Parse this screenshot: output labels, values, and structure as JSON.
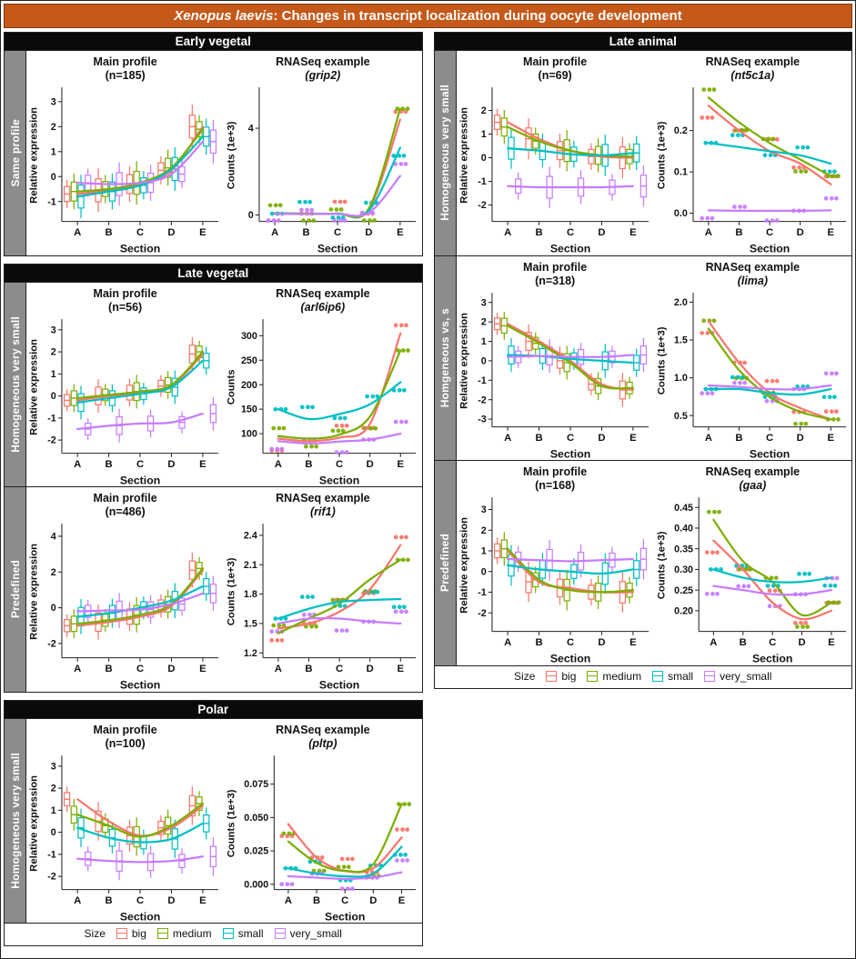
{
  "title": {
    "species": "Xenopus laevis",
    "rest": ": Changes in transcript localization during oocyte development"
  },
  "colors": {
    "big": "#F8766D",
    "medium": "#7CAE00",
    "small": "#00BFC4",
    "very_small": "#C77CFF"
  },
  "legend": {
    "label": "Size",
    "items": [
      "big",
      "medium",
      "small",
      "very_small"
    ]
  },
  "panels": {
    "left": [
      {
        "header": "Early vegetal",
        "rows": [
          {
            "strip": "Same profile"
          }
        ]
      },
      {
        "header": "Late vegetal",
        "rows": [
          {
            "strip": "Homogeneous very small"
          },
          {
            "strip": "Predefined"
          }
        ]
      },
      {
        "header": "Polar",
        "rows": [
          {
            "strip": "Homogeneous very small"
          }
        ]
      }
    ],
    "right": [
      {
        "header": "Late animal",
        "rows": [
          {
            "strip": "Homogeneous very small"
          },
          {
            "strip": "Homgeneous vs, s"
          },
          {
            "strip": "Predefined"
          }
        ]
      }
    ]
  },
  "chart_data": [
    {
      "type": "bar",
      "kind": "box",
      "title1": "Main profile",
      "title2": "(n=185)",
      "ylab": "Relative expression",
      "xlab": "Section",
      "categories": [
        "A",
        "B",
        "C",
        "D",
        "E"
      ],
      "ylim": [
        -1.8,
        3.5
      ],
      "yticks": [
        "-1",
        "0",
        "1",
        "2",
        "3"
      ],
      "spread": 0.8,
      "series": {
        "big": [
          -0.7,
          -0.55,
          -0.3,
          0.25,
          2.0
        ],
        "medium": [
          -0.6,
          -0.5,
          -0.25,
          0.35,
          1.9
        ],
        "small": [
          -0.8,
          -0.6,
          -0.35,
          0.3,
          1.6
        ],
        "very_small": [
          -0.25,
          -0.3,
          -0.25,
          0.1,
          1.4
        ]
      }
    },
    {
      "type": "scatter",
      "kind": "points",
      "title1": "RNASeq example",
      "title2": "(grip2)",
      "italic2": true,
      "ylab": "Counts (1e+3)",
      "xlab": "Section",
      "categories": [
        "A",
        "B",
        "C",
        "D",
        "E"
      ],
      "ylim": [
        -0.3,
        5.8
      ],
      "yticks": [
        "0",
        "4"
      ],
      "series": {
        "big": [
          0.07,
          0.06,
          0.06,
          0.25,
          4.4
        ],
        "medium": [
          0.08,
          0.07,
          0.07,
          0.3,
          4.9
        ],
        "small": [
          0.06,
          0.05,
          0.06,
          0.2,
          3.1
        ],
        "very_small": [
          0.05,
          0.05,
          0.05,
          0.1,
          1.8
        ]
      }
    },
    {
      "type": "bar",
      "kind": "box",
      "title1": "Main profile",
      "title2": "(n=56)",
      "ylab": "Relative expression",
      "xlab": "Section",
      "categories": [
        "A",
        "B",
        "C",
        "D",
        "E"
      ],
      "ylim": [
        -2.6,
        3.4
      ],
      "yticks": [
        "-2",
        "-1",
        "0",
        "1",
        "2",
        "3"
      ],
      "spread": 0.7,
      "series": {
        "big": [
          -0.2,
          0.0,
          0.15,
          0.45,
          1.9
        ],
        "medium": [
          -0.1,
          0.05,
          0.2,
          0.5,
          2.0
        ],
        "small": [
          -0.3,
          -0.1,
          0.1,
          0.4,
          1.6
        ],
        "very_small": [
          -1.5,
          -1.35,
          -1.25,
          -1.2,
          -0.8
        ]
      }
    },
    {
      "type": "scatter",
      "kind": "points",
      "title1": "RNASeq example",
      "title2": "(arl6ip6)",
      "italic2": true,
      "ylab": "Counts",
      "xlab": "Section",
      "categories": [
        "A",
        "B",
        "C",
        "D",
        "E"
      ],
      "ylim": [
        60,
        330
      ],
      "yticks": [
        "100",
        "150",
        "200",
        "250",
        "300"
      ],
      "series": {
        "big": [
          90,
          85,
          92,
          120,
          305
        ],
        "medium": [
          95,
          90,
          98,
          135,
          270
        ],
        "small": [
          150,
          130,
          140,
          160,
          205
        ],
        "very_small": [
          85,
          80,
          84,
          88,
          100
        ]
      }
    },
    {
      "type": "bar",
      "kind": "box",
      "title1": "Main profile",
      "title2": "(n=486)",
      "ylab": "Relative expression",
      "xlab": "Section",
      "categories": [
        "A",
        "B",
        "C",
        "D",
        "E"
      ],
      "ylim": [
        -2.8,
        4.6
      ],
      "yticks": [
        "-2",
        "0",
        "2",
        "4"
      ],
      "spread": 0.9,
      "series": {
        "big": [
          -1.0,
          -0.8,
          -0.5,
          0.1,
          2.1
        ],
        "medium": [
          -0.9,
          -0.7,
          -0.4,
          0.2,
          2.2
        ],
        "small": [
          -0.5,
          -0.3,
          0.0,
          0.4,
          1.2
        ],
        "very_small": [
          -0.2,
          -0.15,
          -0.1,
          0.2,
          0.8
        ]
      }
    },
    {
      "type": "scatter",
      "kind": "points",
      "title1": "RNASeq example",
      "title2": "(rif1)",
      "italic2": true,
      "ylab": "Counts (1e+3)",
      "xlab": "Section",
      "categories": [
        "A",
        "B",
        "C",
        "D",
        "E"
      ],
      "ylim": [
        1.15,
        2.5
      ],
      "yticks": [
        "1.2",
        "1.5",
        "1.8",
        "2.1",
        "2.4"
      ],
      "series": {
        "big": [
          1.45,
          1.5,
          1.62,
          1.85,
          2.3
        ],
        "medium": [
          1.4,
          1.55,
          1.7,
          1.95,
          2.15
        ],
        "small": [
          1.55,
          1.65,
          1.72,
          1.74,
          1.75
        ],
        "very_small": [
          1.5,
          1.55,
          1.55,
          1.52,
          1.5
        ]
      }
    },
    {
      "type": "bar",
      "kind": "box",
      "title1": "Main profile",
      "title2": "(n=100)",
      "ylab": "Relative expression",
      "xlab": "Section",
      "categories": [
        "A",
        "B",
        "C",
        "D",
        "E"
      ],
      "ylim": [
        -2.6,
        3.4
      ],
      "yticks": [
        "-2",
        "-1",
        "0",
        "1",
        "2",
        "3"
      ],
      "spread": 0.8,
      "series": {
        "big": [
          1.5,
          0.5,
          -0.15,
          0.2,
          1.2
        ],
        "medium": [
          0.8,
          0.3,
          -0.2,
          0.3,
          1.3
        ],
        "small": [
          0.2,
          -0.25,
          -0.45,
          -0.3,
          0.4
        ],
        "very_small": [
          -1.2,
          -1.3,
          -1.35,
          -1.3,
          -1.1
        ]
      }
    },
    {
      "type": "scatter",
      "kind": "points",
      "title1": "RNASeq example",
      "title2": "(pltp)",
      "italic2": true,
      "ylab": "Counts (1e+3)",
      "xlab": "Section",
      "categories": [
        "A",
        "B",
        "C",
        "D",
        "E"
      ],
      "ylim": [
        -0.004,
        0.095
      ],
      "yticks": [
        "0.000",
        "0.025",
        "0.050",
        "0.075"
      ],
      "series": {
        "big": [
          0.045,
          0.02,
          0.01,
          0.012,
          0.035
        ],
        "medium": [
          0.032,
          0.016,
          0.01,
          0.015,
          0.06
        ],
        "small": [
          0.012,
          0.008,
          0.006,
          0.008,
          0.028
        ],
        "very_small": [
          0.006,
          0.005,
          0.004,
          0.005,
          0.009
        ]
      }
    },
    {
      "type": "bar",
      "kind": "box",
      "title1": "Main profile",
      "title2": "(n=69)",
      "ylab": "Relative expression",
      "xlab": "Section",
      "categories": [
        "A",
        "B",
        "C",
        "D",
        "E"
      ],
      "ylim": [
        -2.7,
        2.9
      ],
      "yticks": [
        "-2",
        "-1",
        "0",
        "1",
        "2"
      ],
      "spread": 0.8,
      "series": {
        "big": [
          1.5,
          0.8,
          0.3,
          0.05,
          0.0
        ],
        "medium": [
          1.3,
          0.7,
          0.3,
          0.1,
          0.05
        ],
        "small": [
          0.4,
          0.3,
          0.15,
          0.1,
          0.2
        ],
        "very_small": [
          -1.2,
          -1.25,
          -1.25,
          -1.25,
          -1.2
        ]
      }
    },
    {
      "type": "scatter",
      "kind": "points",
      "title1": "RNASeq example",
      "title2": "(nt5c1a)",
      "italic2": true,
      "ylab": "Counts (1e+3)",
      "xlab": "Section",
      "categories": [
        "A",
        "B",
        "C",
        "D",
        "E"
      ],
      "ylim": [
        -0.02,
        0.3
      ],
      "yticks": [
        "0.0",
        "0.1",
        "0.2"
      ],
      "series": {
        "big": [
          0.26,
          0.2,
          0.15,
          0.12,
          0.07
        ],
        "medium": [
          0.28,
          0.22,
          0.17,
          0.13,
          0.09
        ],
        "small": [
          0.17,
          0.16,
          0.15,
          0.14,
          0.12
        ],
        "very_small": [
          0.007,
          0.006,
          0.006,
          0.006,
          0.007
        ]
      }
    },
    {
      "type": "bar",
      "kind": "box",
      "title1": "Main profile",
      "title2": "(n=318)",
      "ylab": "Relative expression",
      "xlab": "Section",
      "categories": [
        "A",
        "B",
        "C",
        "D",
        "E"
      ],
      "ylim": [
        -3.4,
        3.4
      ],
      "yticks": [
        "-3",
        "-2",
        "-1",
        "0",
        "1",
        "2",
        "3"
      ],
      "spread": 0.8,
      "series": {
        "big": [
          1.9,
          1.0,
          0.0,
          -1.2,
          -1.5
        ],
        "medium": [
          1.8,
          0.9,
          -0.1,
          -1.3,
          -1.4
        ],
        "small": [
          0.3,
          0.25,
          0.1,
          0.0,
          -0.1
        ],
        "very_small": [
          0.2,
          0.25,
          0.2,
          0.2,
          0.3
        ]
      }
    },
    {
      "type": "scatter",
      "kind": "points",
      "title1": "RNASeq example",
      "title2": "(lima)",
      "italic2": true,
      "ylab": "Counts (1e+3)",
      "xlab": "Section",
      "categories": [
        "A",
        "B",
        "C",
        "D",
        "E"
      ],
      "ylim": [
        0.35,
        2.1
      ],
      "yticks": [
        "0.5",
        "1.0",
        "1.5",
        "2.0"
      ],
      "series": {
        "big": [
          1.75,
          1.2,
          0.8,
          0.6,
          0.45
        ],
        "medium": [
          1.65,
          1.1,
          0.75,
          0.55,
          0.45
        ],
        "small": [
          0.85,
          0.85,
          0.8,
          0.78,
          0.85
        ],
        "very_small": [
          0.9,
          0.88,
          0.85,
          0.85,
          0.9
        ]
      }
    },
    {
      "type": "bar",
      "kind": "box",
      "title1": "Main profile",
      "title2": "(n=168)",
      "ylab": "Relative expression",
      "xlab": "Section",
      "categories": [
        "A",
        "B",
        "C",
        "D",
        "E"
      ],
      "ylim": [
        -2.9,
        3.5
      ],
      "yticks": [
        "-2",
        "-1",
        "0",
        "1",
        "2",
        "3"
      ],
      "spread": 0.9,
      "series": {
        "big": [
          1.0,
          -0.5,
          -0.8,
          -1.0,
          -1.0
        ],
        "medium": [
          1.1,
          -0.4,
          -0.9,
          -1.0,
          -0.9
        ],
        "small": [
          0.3,
          0.1,
          0.0,
          -0.1,
          0.1
        ],
        "very_small": [
          0.6,
          0.55,
          0.5,
          0.55,
          0.6
        ]
      }
    },
    {
      "type": "scatter",
      "kind": "points",
      "title1": "RNASeq example",
      "title2": "(gaa)",
      "italic2": true,
      "ylab": "Counts (1e+3)",
      "xlab": "Section",
      "categories": [
        "A",
        "B",
        "C",
        "D",
        "E"
      ],
      "ylim": [
        0.15,
        0.47
      ],
      "yticks": [
        "0.20",
        "0.25",
        "0.30",
        "0.35",
        "0.40",
        "0.45"
      ],
      "series": {
        "big": [
          0.37,
          0.3,
          0.22,
          0.18,
          0.2
        ],
        "medium": [
          0.42,
          0.32,
          0.27,
          0.19,
          0.22
        ],
        "small": [
          0.3,
          0.28,
          0.27,
          0.27,
          0.28
        ],
        "very_small": [
          0.26,
          0.25,
          0.24,
          0.24,
          0.25
        ]
      }
    }
  ]
}
